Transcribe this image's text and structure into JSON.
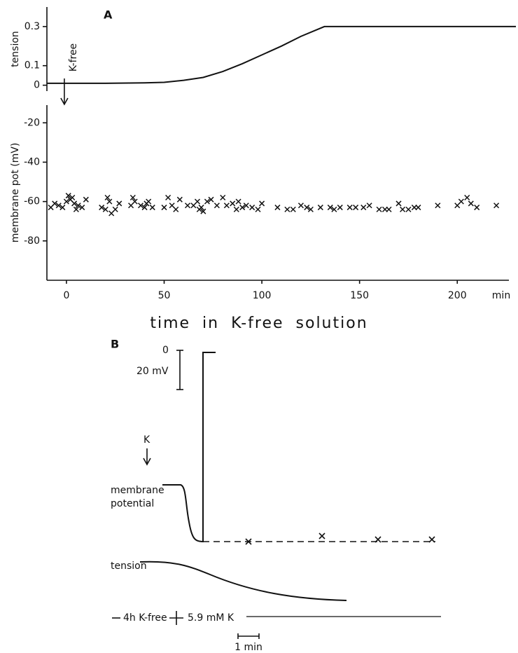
{
  "chart_data": [
    {
      "type": "line",
      "panel_label": "A",
      "ylabel": "tension",
      "xlim": [
        -10,
        230
      ],
      "ylim": [
        -0.03,
        0.4
      ],
      "yticks": [
        0,
        0.1,
        0.3
      ],
      "x": [
        -10,
        0,
        20,
        40,
        50,
        60,
        70,
        80,
        90,
        100,
        110,
        120,
        132,
        150,
        200,
        230
      ],
      "values": [
        0.01,
        0.01,
        0.01,
        0.012,
        0.015,
        0.025,
        0.04,
        0.07,
        0.11,
        0.155,
        0.2,
        0.25,
        0.3,
        0.3,
        0.3,
        0.3
      ],
      "color": "#111111"
    },
    {
      "type": "scatter",
      "ylabel": "membrane pot (mV)",
      "xlabel": "time in K-free solution",
      "x_unit": "min",
      "annotation": "K-free",
      "annotation_x": 0,
      "xlim": [
        -10,
        230
      ],
      "ylim": [
        -100,
        -11
      ],
      "xticks": [
        0,
        50,
        100,
        150,
        200
      ],
      "yticks": [
        -20,
        -40,
        -60,
        -80
      ],
      "x": [
        -8,
        -6,
        -4,
        -2,
        0,
        1,
        2,
        3,
        4,
        5,
        6,
        8,
        10,
        18,
        20,
        21,
        22,
        23,
        25,
        27,
        33,
        34,
        35,
        38,
        40,
        41,
        42,
        44,
        50,
        52,
        54,
        56,
        58,
        62,
        65,
        67,
        68,
        69,
        70,
        72,
        74,
        77,
        80,
        82,
        85,
        87,
        88,
        90,
        92,
        95,
        98,
        100,
        108,
        113,
        116,
        120,
        123,
        125,
        130,
        135,
        137,
        140,
        145,
        148,
        152,
        155,
        160,
        163,
        165,
        170,
        172,
        175,
        178,
        180,
        190,
        200,
        202,
        205,
        207,
        210,
        220
      ],
      "values": [
        -63,
        -61,
        -62,
        -63,
        -60,
        -57,
        -59,
        -58,
        -61,
        -64,
        -62,
        -63,
        -59,
        -63,
        -64,
        -58,
        -60,
        -66,
        -64,
        -61,
        -62,
        -58,
        -60,
        -62,
        -63,
        -61,
        -60,
        -63,
        -63,
        -58,
        -62,
        -64,
        -59,
        -62,
        -62,
        -60,
        -64,
        -63,
        -65,
        -60,
        -59,
        -62,
        -58,
        -62,
        -61,
        -64,
        -60,
        -63,
        -62,
        -63,
        -64,
        -61,
        -63,
        -64,
        -64,
        -62,
        -63,
        -64,
        -63,
        -63,
        -64,
        -63,
        -63,
        -63,
        -63,
        -62,
        -64,
        -64,
        -64,
        -61,
        -64,
        -64,
        -63,
        -63,
        -62,
        -62,
        -60,
        -58,
        -61,
        -63,
        -62
      ],
      "color": "#111111"
    }
  ],
  "panel_b": {
    "label": "B",
    "zero_label": "0",
    "scale_mv": "20 mV",
    "stimulus": "K",
    "trace_1": [
      "membrane",
      "potential"
    ],
    "trace_2": "tension",
    "condition_1": "4h K-free",
    "condition_2": "5.9 mM K",
    "time_scale": "1 min"
  }
}
